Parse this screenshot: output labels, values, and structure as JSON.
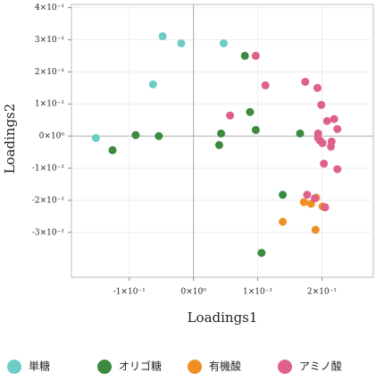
{
  "chart_data": {
    "type": "scatter",
    "x_label": "Loadings1",
    "y_label": "Loadings2",
    "xlim": [
      -0.19,
      0.28
    ],
    "ylim": [
      -0.44,
      0.41
    ],
    "xticks": [
      {
        "value": -0.1,
        "label": "-1×10⁻¹"
      },
      {
        "value": 0,
        "label": "0×10⁰"
      },
      {
        "value": 0.1,
        "label": "1×10⁻¹"
      },
      {
        "value": 0.2,
        "label": "2×10⁻¹"
      }
    ],
    "yticks": [
      {
        "value": -0.3,
        "label": "-3×10⁻¹"
      },
      {
        "value": -0.2,
        "label": "-2×10⁻¹"
      },
      {
        "value": -0.1,
        "label": "-1×10⁻¹"
      },
      {
        "value": 0,
        "label": "0×10⁰"
      },
      {
        "value": 0.1,
        "label": "1×10⁻¹"
      },
      {
        "value": 0.2,
        "label": "2×10⁻¹"
      },
      {
        "value": 0.3,
        "label": "3×10⁻¹"
      },
      {
        "value": 0.4,
        "label": "4×10⁻¹"
      }
    ],
    "grid": true,
    "series": [
      {
        "name": "単糖",
        "color": "#6dcdc6",
        "x": [
          -0.152,
          -0.048,
          -0.019,
          0.047,
          -0.063
        ],
        "values": [
          -0.006,
          0.311,
          0.289,
          0.289,
          0.161
        ]
      },
      {
        "name": "オリゴ糖",
        "color": "#3b8a3e",
        "x": [
          -0.126,
          -0.09,
          -0.054,
          0.04,
          0.08,
          0.088,
          0.043,
          0.097,
          0.166,
          0.139,
          0.106
        ],
        "values": [
          -0.044,
          0.003,
          0,
          -0.028,
          0.25,
          0.075,
          0.008,
          0.019,
          0.008,
          -0.183,
          -0.364
        ]
      },
      {
        "name": "有機酸",
        "color": "#ef8f22",
        "x": [
          0.139,
          0.172,
          0.183,
          0.191,
          0.19,
          0.201
        ],
        "values": [
          -0.267,
          -0.206,
          -0.211,
          -0.192,
          -0.292,
          -0.219
        ]
      },
      {
        "name": "アミノ酸",
        "color": "#df6189",
        "x": [
          0.097,
          0.112,
          0.057,
          0.174,
          0.193,
          0.199,
          0.208,
          0.219,
          0.224,
          0.194,
          0.194,
          0.214,
          0.203,
          0.224,
          0.201,
          0.189,
          0.205,
          0.197,
          0.215,
          0.177
        ],
        "values": [
          0.25,
          0.158,
          0.064,
          0.169,
          0.15,
          0.097,
          0.047,
          0.053,
          0.022,
          0.008,
          -0.006,
          -0.033,
          -0.086,
          -0.103,
          -0.022,
          -0.194,
          -0.222,
          -0.014,
          -0.017,
          -0.183
        ]
      }
    ]
  }
}
